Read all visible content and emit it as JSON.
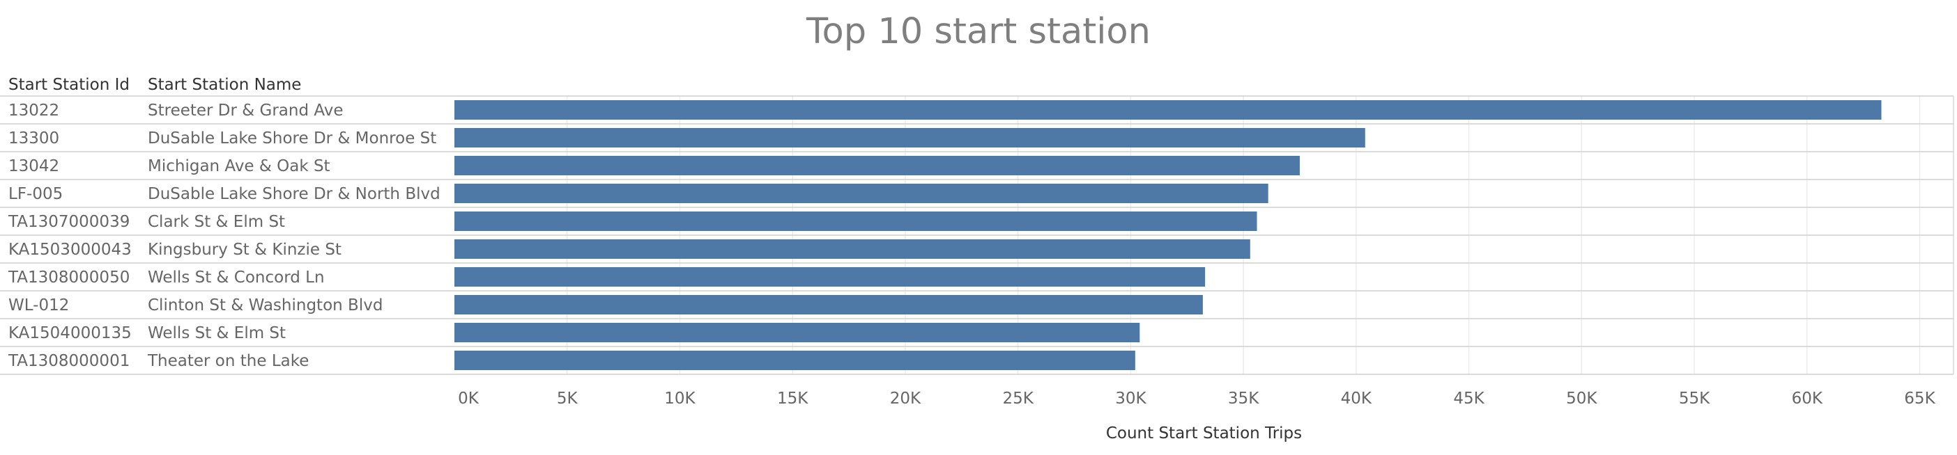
{
  "chart_data": {
    "type": "bar",
    "orientation": "horizontal",
    "title": "Top 10 start station",
    "columns": [
      "Start Station Id",
      "Start Station Name"
    ],
    "rows": [
      {
        "id": "13022",
        "name": "Streeter Dr & Grand Ave",
        "value": 63300
      },
      {
        "id": "13300",
        "name": "DuSable Lake Shore Dr & Monroe St",
        "value": 40400
      },
      {
        "id": "13042",
        "name": "Michigan Ave & Oak St",
        "value": 37500
      },
      {
        "id": "LF-005",
        "name": "DuSable Lake Shore Dr & North Blvd",
        "value": 36100
      },
      {
        "id": "TA1307000039",
        "name": "Clark St & Elm St",
        "value": 35600
      },
      {
        "id": "KA1503000043",
        "name": "Kingsbury St & Kinzie St",
        "value": 35300
      },
      {
        "id": "TA1308000050",
        "name": "Wells St & Concord Ln",
        "value": 33300
      },
      {
        "id": "WL-012",
        "name": "Clinton St & Washington Blvd",
        "value": 33200
      },
      {
        "id": "KA1504000135",
        "name": "Wells St & Elm St",
        "value": 30400
      },
      {
        "id": "TA1308000001",
        "name": "Theater on the Lake",
        "value": 30200
      }
    ],
    "xlabel": "Count Start Station Trips",
    "xlim": [
      0,
      66500
    ],
    "xticks": [
      0,
      5000,
      10000,
      15000,
      20000,
      25000,
      30000,
      35000,
      40000,
      45000,
      50000,
      55000,
      60000,
      65000
    ],
    "xtick_labels": [
      "0K",
      "5K",
      "10K",
      "15K",
      "20K",
      "25K",
      "30K",
      "35K",
      "40K",
      "45K",
      "50K",
      "55K",
      "60K",
      "65K"
    ],
    "grid": true,
    "bar_color": "#4e79a7"
  }
}
